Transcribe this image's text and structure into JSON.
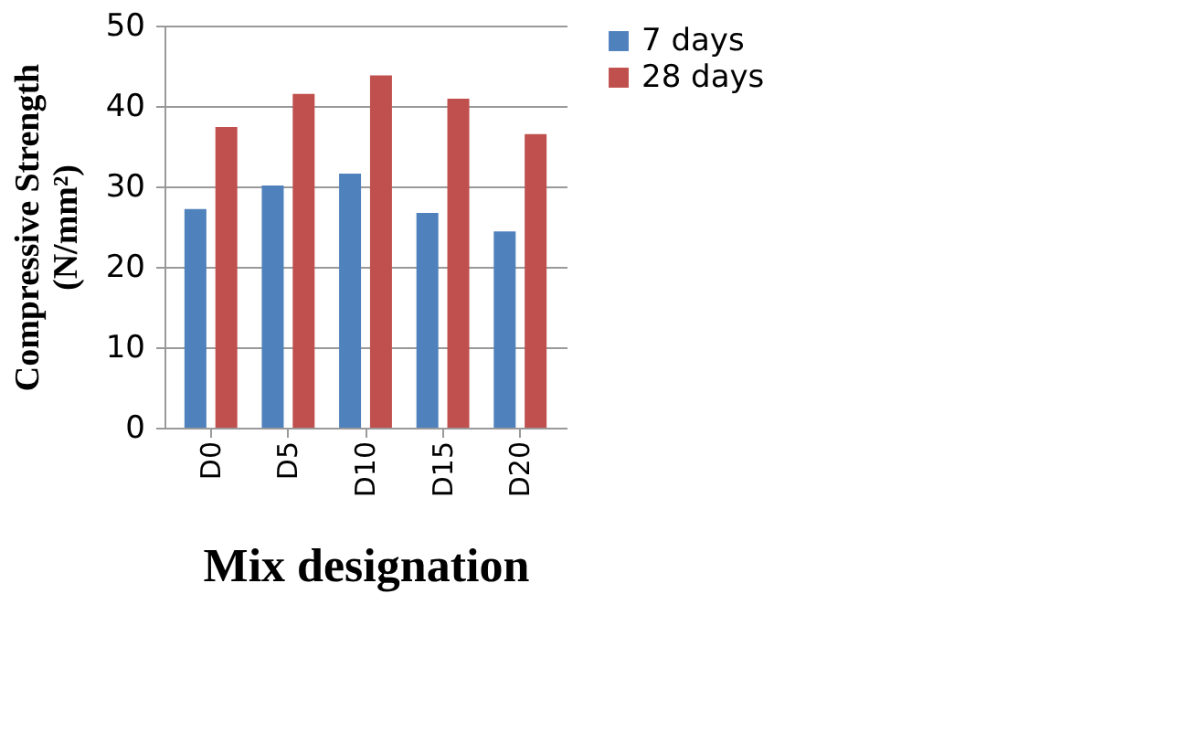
{
  "chart_data": {
    "type": "bar",
    "xlabel": "Mix designation",
    "ylabel": "Compressive Strength\n(N/mm²)",
    "categories": [
      "D0",
      "D5",
      "D10",
      "D15",
      "D20"
    ],
    "series": [
      {
        "name": "7 days",
        "color": "#4f81bd",
        "values": [
          27.2,
          30.1,
          31.6,
          26.7,
          24.4
        ]
      },
      {
        "name": "28 days",
        "color": "#c0504d",
        "values": [
          37.4,
          41.5,
          43.8,
          40.9,
          36.5
        ]
      }
    ],
    "ylim": [
      0,
      50
    ],
    "yticks": [
      0,
      10,
      20,
      30,
      40,
      50
    ],
    "grid": "y",
    "legend": "right"
  }
}
